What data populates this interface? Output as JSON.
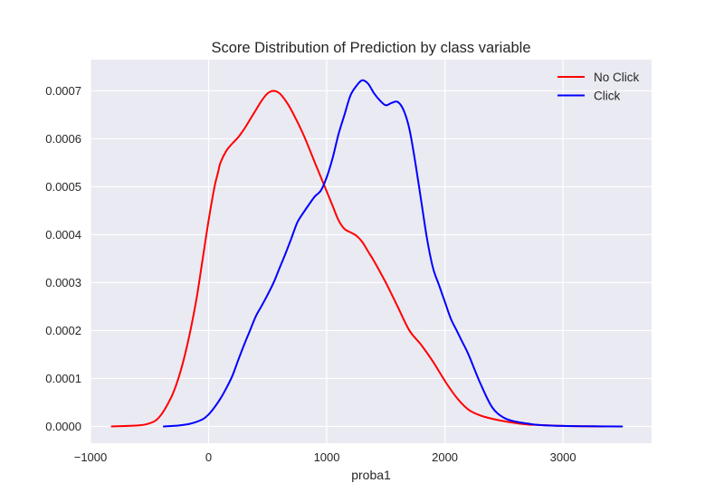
{
  "chart_data": {
    "type": "line",
    "title": "Score Distribution of Prediction by class variable",
    "xlabel": "proba1",
    "ylabel": "",
    "xlim": [
      -1000,
      3750
    ],
    "ylim": [
      -3.5e-05,
      0.000765
    ],
    "grid": true,
    "legend_position": "top-right",
    "xticks": [
      {
        "value": -1000,
        "label": "−1000"
      },
      {
        "value": 0,
        "label": "0"
      },
      {
        "value": 1000,
        "label": "1000"
      },
      {
        "value": 2000,
        "label": "2000"
      },
      {
        "value": 3000,
        "label": "3000"
      }
    ],
    "yticks": [
      {
        "value": 0.0,
        "label": "0.0000"
      },
      {
        "value": 0.0001,
        "label": "0.0001"
      },
      {
        "value": 0.0002,
        "label": "0.0002"
      },
      {
        "value": 0.0003,
        "label": "0.0003"
      },
      {
        "value": 0.0004,
        "label": "0.0004"
      },
      {
        "value": 0.0005,
        "label": "0.0005"
      },
      {
        "value": 0.0006,
        "label": "0.0006"
      },
      {
        "value": 0.0007,
        "label": "0.0007"
      }
    ],
    "series": [
      {
        "name": "No Click",
        "color": "#ff0000",
        "x": [
          -820,
          -600,
          -520,
          -450,
          -400,
          -350,
          -300,
          -250,
          -200,
          -150,
          -100,
          -50,
          0,
          50,
          80,
          100,
          150,
          200,
          250,
          300,
          350,
          400,
          450,
          500,
          550,
          600,
          650,
          700,
          800,
          900,
          1000,
          1050,
          1100,
          1150,
          1200,
          1250,
          1300,
          1350,
          1400,
          1500,
          1600,
          1700,
          1800,
          1900,
          2000,
          2100,
          2200,
          2300,
          2400,
          2500,
          2600,
          2700,
          2800,
          3000,
          3200,
          3350
        ],
        "y": [
          0.0,
          2e-06,
          5e-06,
          1.2e-05,
          2.5e-05,
          4.5e-05,
          7e-05,
          0.000105,
          0.00015,
          0.000205,
          0.00027,
          0.00035,
          0.00043,
          0.0005,
          0.00053,
          0.00055,
          0.000575,
          0.00059,
          0.000603,
          0.00062,
          0.00064,
          0.00066,
          0.00068,
          0.000695,
          0.0007,
          0.000695,
          0.00068,
          0.00066,
          0.00061,
          0.00055,
          0.00049,
          0.00046,
          0.00043,
          0.000412,
          0.000405,
          0.000398,
          0.000385,
          0.000365,
          0.000345,
          0.0003,
          0.00025,
          0.0002,
          0.00017,
          0.000135,
          9.5e-05,
          6e-05,
          3.5e-05,
          2.3e-05,
          1.6e-05,
          1.1e-05,
          7e-06,
          4e-06,
          3e-06,
          1e-06,
          3e-07,
          0.0
        ]
      },
      {
        "name": "Click",
        "color": "#0000ff",
        "x": [
          -380,
          -250,
          -150,
          -50,
          0,
          50,
          100,
          150,
          200,
          250,
          300,
          350,
          400,
          450,
          500,
          550,
          600,
          650,
          700,
          750,
          800,
          850,
          900,
          950,
          1000,
          1050,
          1100,
          1150,
          1200,
          1250,
          1300,
          1350,
          1400,
          1450,
          1500,
          1550,
          1600,
          1650,
          1700,
          1750,
          1800,
          1850,
          1900,
          1950,
          2000,
          2050,
          2100,
          2150,
          2200,
          2300,
          2400,
          2500,
          2600,
          2700,
          2800,
          3000,
          3300,
          3500
        ],
        "y": [
          0.0,
          2e-06,
          6e-06,
          1.5e-05,
          2.5e-05,
          4e-05,
          5.8e-05,
          8e-05,
          0.000105,
          0.000138,
          0.00017,
          0.0002,
          0.00023,
          0.000252,
          0.000275,
          0.0003,
          0.00033,
          0.00036,
          0.000392,
          0.000425,
          0.000445,
          0.000463,
          0.00048,
          0.000492,
          0.00052,
          0.00056,
          0.00061,
          0.00065,
          0.00069,
          0.00071,
          0.000722,
          0.000715,
          0.000695,
          0.00068,
          0.00067,
          0.000675,
          0.000677,
          0.00066,
          0.00062,
          0.00055,
          0.00047,
          0.00039,
          0.00033,
          0.000295,
          0.00026,
          0.000225,
          0.0002,
          0.000175,
          0.00015,
          9e-05,
          4e-05,
          1.8e-05,
          1e-05,
          6e-06,
          3e-06,
          1e-06,
          2e-07,
          0.0
        ]
      }
    ]
  }
}
